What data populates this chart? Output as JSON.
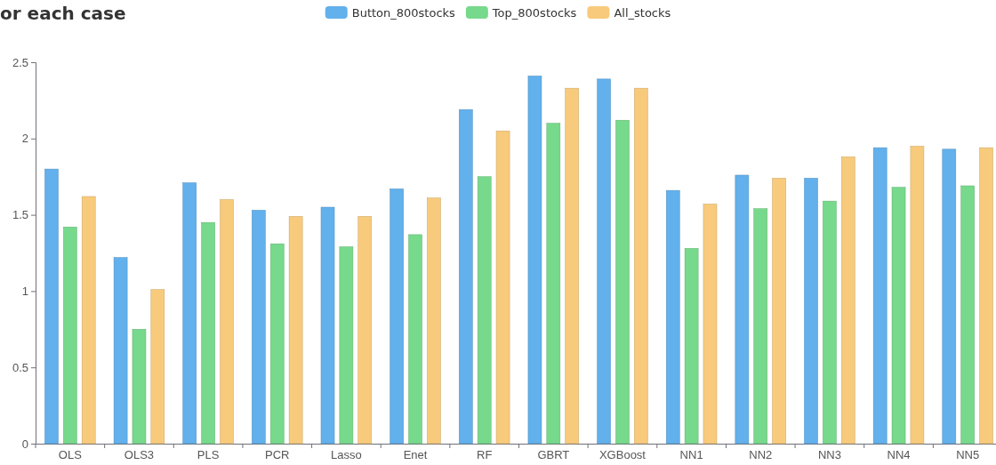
{
  "chart_data": {
    "type": "bar",
    "title": "or each case",
    "legend": "top",
    "grid": false,
    "categories": [
      "OLS",
      "OLS3",
      "PLS",
      "PCR",
      "Lasso",
      "Enet",
      "RF",
      "GBRT",
      "XGBoost",
      "NN1",
      "NN2",
      "NN3",
      "NN4",
      "NN5"
    ],
    "ylim": [
      0,
      2.5
    ],
    "yticks": [
      0,
      {
        "value": 0.5,
        "label": "0.5"
      },
      1,
      {
        "value": 1.5,
        "label": "1.5"
      },
      2,
      {
        "value": 2.5,
        "label": "2.5"
      }
    ],
    "series": [
      {
        "name": "Button_800stocks",
        "color": "#62b0ec",
        "values": [
          1.8,
          1.22,
          1.71,
          1.53,
          1.55,
          1.67,
          2.19,
          2.41,
          2.39,
          1.66,
          1.76,
          1.74,
          1.94,
          1.93
        ]
      },
      {
        "name": "Top_800stocks",
        "color": "#77d98b",
        "values": [
          1.42,
          0.75,
          1.45,
          1.31,
          1.29,
          1.37,
          1.75,
          2.1,
          2.12,
          1.28,
          1.54,
          1.59,
          1.68,
          1.69
        ]
      },
      {
        "name": "All_stocks",
        "color": "#f8ca7c",
        "values": [
          1.62,
          1.01,
          1.6,
          1.49,
          1.49,
          1.61,
          2.05,
          2.33,
          2.33,
          1.57,
          1.74,
          1.88,
          1.95,
          1.94
        ]
      }
    ]
  }
}
